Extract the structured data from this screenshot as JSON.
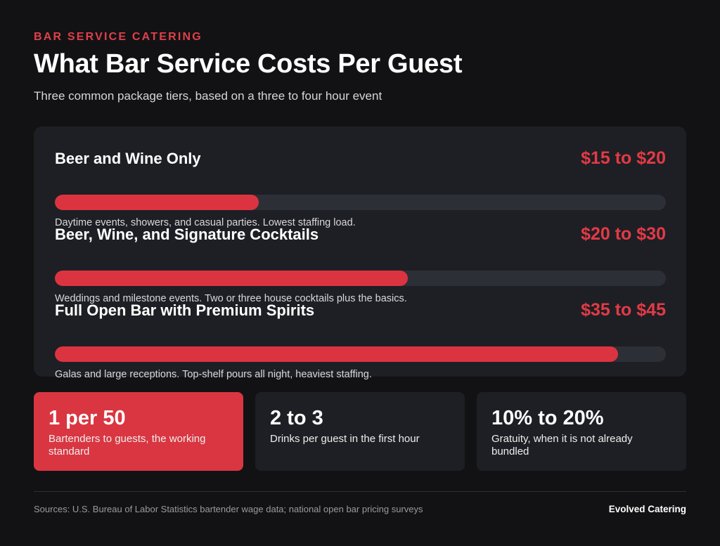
{
  "header": {
    "eyebrow": "BAR SERVICE CATERING",
    "title": "What Bar Service Costs Per Guest",
    "subtitle": "Three common package tiers, based on a three to four hour event"
  },
  "chart_data": {
    "type": "bar",
    "orientation": "horizontal",
    "categories": [
      "Beer and Wine Only",
      "Beer, Wine, and Signature Cocktails",
      "Full Open Bar with Premium Spirits"
    ],
    "values": [
      15,
      26,
      41.5
    ],
    "range_labels": [
      "$15 to $20",
      "$20 to $30",
      "$35 to $45"
    ],
    "descriptions": [
      "Daytime events, showers, and casual parties. Lowest staffing load.",
      "Weddings and milestone events. Two or three house cocktails plus the basics.",
      "Galas and large receptions. Top-shelf pours all night, heaviest staffing."
    ],
    "xlim": [
      0,
      45
    ],
    "bar_color": "#db3440",
    "track_color": "#2d2f37",
    "label_color": "#e33a46",
    "grid": false,
    "legend": "none"
  },
  "stats": [
    {
      "value": "1 per 50",
      "label": "Bartenders to guests, the working standard"
    },
    {
      "value": "2 to 3",
      "label": "Drinks per guest in the first hour"
    },
    {
      "value": "10% to 20%",
      "label": "Gratuity, when it is not already bundled"
    }
  ],
  "footer": {
    "sources": "Sources: U.S. Bureau of Labor Statistics bartender wage data; national open bar pricing surveys",
    "brand": "Evolved Catering"
  },
  "colors": {
    "background": "#121214",
    "card": "#1e1f24",
    "accent": "#d93641"
  }
}
